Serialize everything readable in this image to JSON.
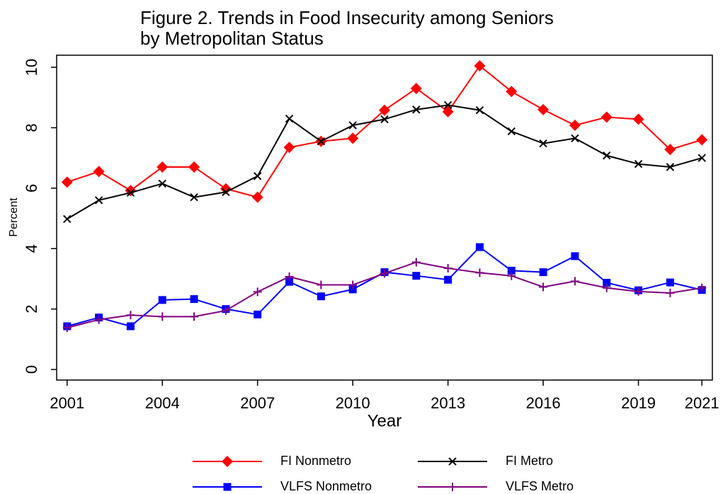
{
  "chart_data": {
    "type": "line",
    "title": [
      "Figure 2.  Trends in Food Insecurity among Seniors",
      "by Metropolitan Status"
    ],
    "x_label": "Year",
    "y_label": "Percent",
    "x": [
      2001,
      2002,
      2003,
      2004,
      2005,
      2006,
      2007,
      2008,
      2009,
      2010,
      2011,
      2012,
      2013,
      2014,
      2015,
      2016,
      2017,
      2018,
      2019,
      2020,
      2021
    ],
    "series": [
      {
        "name": "FI Nonmetro",
        "color": "#ff0000",
        "marker": "diamond",
        "values": [
          6.2,
          6.55,
          5.92,
          6.7,
          6.7,
          5.98,
          5.7,
          7.35,
          7.55,
          7.65,
          8.58,
          9.3,
          8.53,
          10.05,
          9.2,
          8.6,
          8.08,
          8.35,
          8.28,
          7.28,
          7.6
        ]
      },
      {
        "name": "FI Metro",
        "color": "#000000",
        "marker": "x",
        "values": [
          4.98,
          5.6,
          5.85,
          6.15,
          5.7,
          5.87,
          6.4,
          8.3,
          7.55,
          8.08,
          8.28,
          8.6,
          8.75,
          8.58,
          7.88,
          7.48,
          7.65,
          7.08,
          6.8,
          6.7,
          7.0
        ]
      },
      {
        "name": "VLFS Nonmetro",
        "color": "#0000ff",
        "marker": "square",
        "values": [
          1.43,
          1.72,
          1.43,
          2.3,
          2.33,
          2.0,
          1.82,
          2.9,
          2.42,
          2.65,
          3.22,
          3.1,
          2.97,
          4.05,
          3.27,
          3.22,
          3.75,
          2.87,
          2.62,
          2.88,
          2.63
        ]
      },
      {
        "name": "VLFS Metro",
        "color": "#800080",
        "marker": "plus",
        "values": [
          1.38,
          1.65,
          1.8,
          1.75,
          1.75,
          1.95,
          2.57,
          3.07,
          2.8,
          2.8,
          3.18,
          3.55,
          3.35,
          3.2,
          3.1,
          2.73,
          2.92,
          2.7,
          2.58,
          2.53,
          2.7
        ]
      }
    ],
    "xlim": [
      2000.67,
      2021.33
    ],
    "xticks": [
      2001,
      2004,
      2007,
      2010,
      2013,
      2016,
      2019,
      2021
    ],
    "ylim": [
      -0.35,
      10.4
    ],
    "yticks": [
      0,
      2,
      4,
      6,
      8,
      10
    ],
    "grid": false,
    "legend": "bottom"
  }
}
